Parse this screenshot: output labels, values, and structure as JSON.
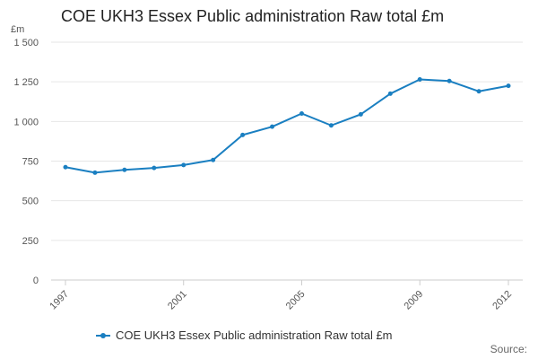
{
  "colors": {
    "series": "#1a7fc1",
    "grid": "#e6e6e6",
    "axis": "#cccccc",
    "text": "#555555"
  },
  "source_label": "Source:",
  "chart_data": {
    "type": "line",
    "title": "COE UKH3 Essex Public administration Raw total £m",
    "ylabel": "£m",
    "xlabel": "",
    "ylim": [
      0,
      1500
    ],
    "yticks": [
      0,
      250,
      500,
      750,
      1000,
      1250,
      1500
    ],
    "ytick_labels": [
      "0",
      "250",
      "500",
      "750",
      "1 000",
      "1 250",
      "1 500"
    ],
    "xlim": [
      1997,
      2012
    ],
    "xticks": [
      1997,
      2001,
      2005,
      2009,
      2012
    ],
    "x": [
      1997,
      1998,
      1999,
      2000,
      2001,
      2002,
      2003,
      2004,
      2005,
      2006,
      2007,
      2008,
      2009,
      2010,
      2011,
      2012
    ],
    "series": [
      {
        "name": "COE UKH3 Essex Public administration Raw total £m",
        "values": [
          712,
          677,
          695,
          707,
          725,
          757,
          915,
          967,
          1050,
          975,
          1045,
          1175,
          1265,
          1255,
          1190,
          1225
        ]
      }
    ],
    "grid": true,
    "legend": "bottom"
  }
}
